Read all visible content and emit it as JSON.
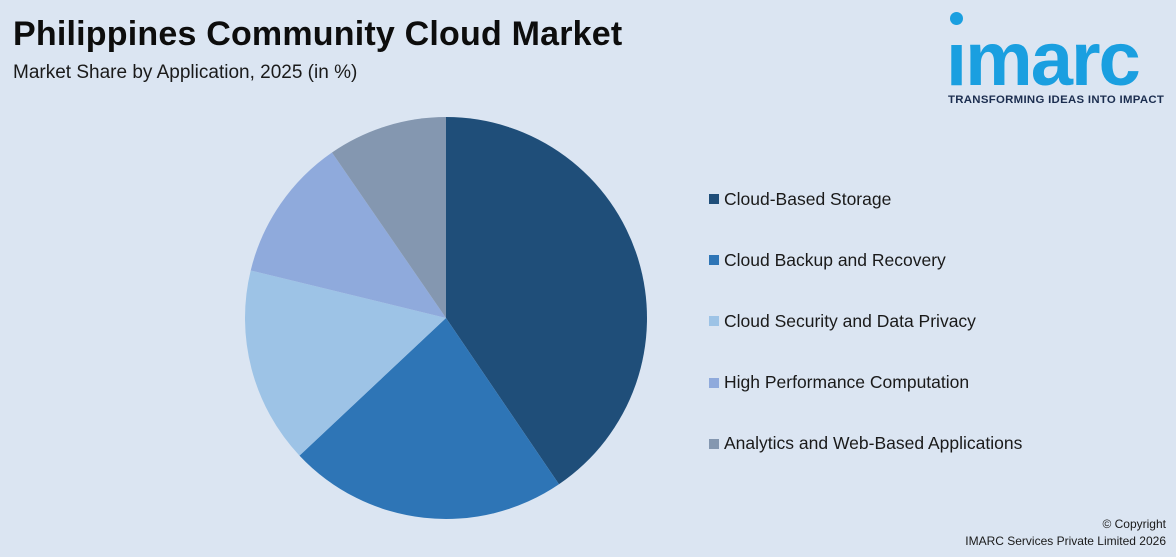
{
  "header": {
    "title": "Philippines Community Cloud Market",
    "subtitle": "Market Share by Application, 2025 (in %)"
  },
  "logo": {
    "wordmark": "imarc",
    "tagline": "TRANSFORMING IDEAS INTO IMPACT",
    "color": "#1a9fe0"
  },
  "chart_data": {
    "type": "pie",
    "title": "Philippines Community Cloud Market",
    "subtitle": "Market Share by Application, 2025 (in %)",
    "start_angle_deg": 0,
    "direction": "clockwise",
    "legend_position": "right",
    "slices": [
      {
        "label": "Cloud-Based Storage",
        "value": 40.5,
        "color": "#1f4e79"
      },
      {
        "label": "Cloud Backup and Recovery",
        "value": 22.5,
        "color": "#2e75b6"
      },
      {
        "label": "Cloud Security and Data Privacy",
        "value": 15.8,
        "color": "#9dc3e6"
      },
      {
        "label": "High Performance Computation",
        "value": 11.6,
        "color": "#8faadc"
      },
      {
        "label": "Analytics and Web-Based Applications",
        "value": 9.6,
        "color": "#8497b0"
      }
    ]
  },
  "footer": {
    "copyright_line1": "© Copyright",
    "copyright_line2": "IMARC Services Private Limited 2026"
  }
}
